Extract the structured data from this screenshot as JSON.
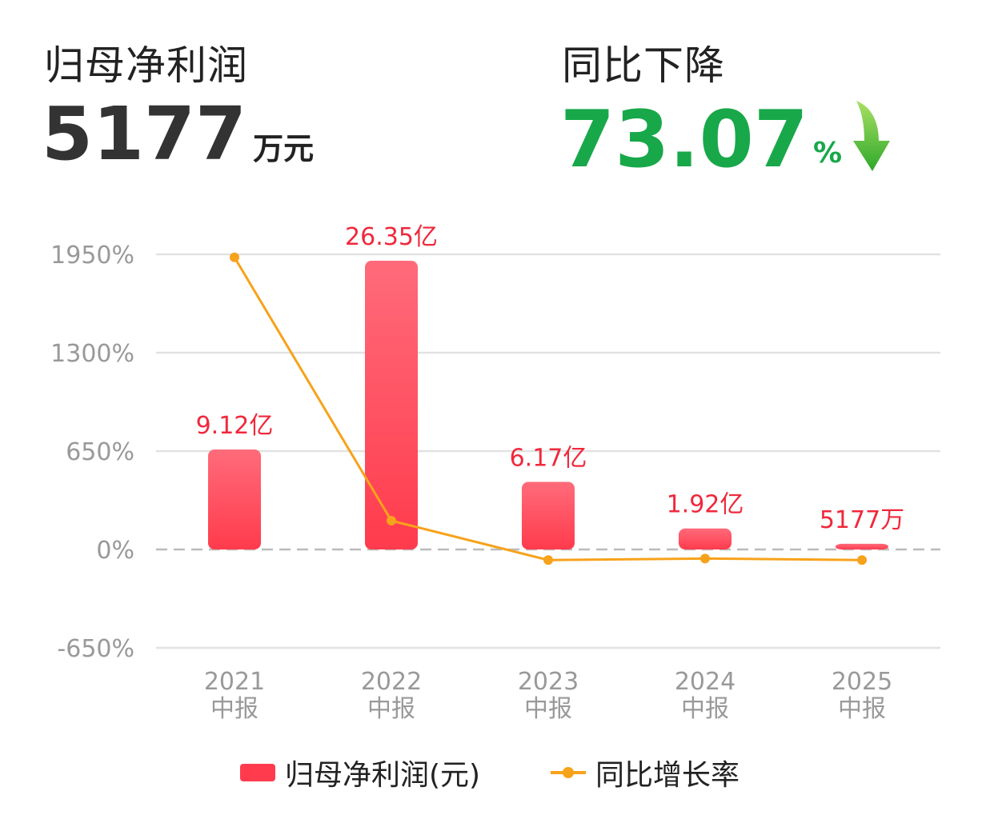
{
  "header": {
    "left_label": "归母净利润",
    "left_value": "5177",
    "left_unit": "万元",
    "right_label": "同比下降",
    "right_value": "73.07",
    "right_unit": "%",
    "right_arrow_icon": "down-arrow-icon"
  },
  "colors": {
    "bar_top": "#ff6b7a",
    "bar_bottom": "#ff3b4d",
    "line": "#f7a21b",
    "label_red": "#f0283c",
    "decline_green": "#18a84a",
    "grid": "#e2e2e2",
    "axis_text": "#999999"
  },
  "chart_data": {
    "type": "bar",
    "categories": [
      [
        "2021",
        "中报"
      ],
      [
        "2022",
        "中报"
      ],
      [
        "2023",
        "中报"
      ],
      [
        "2024",
        "中报"
      ],
      [
        "2025",
        "中报"
      ]
    ],
    "y_ticks": [
      "1950%",
      "1300%",
      "650%",
      "0%",
      "-650%"
    ],
    "y_tick_values": [
      1950,
      1300,
      650,
      0,
      -650
    ],
    "ylim": [
      -650,
      1950
    ],
    "series": [
      {
        "name": "归母净利润(元)",
        "type": "bar",
        "values": [
          912000000,
          2635000000,
          617000000,
          192000000,
          51770000
        ],
        "labels": [
          "9.12亿",
          "26.35亿",
          "6.17亿",
          "1.92亿",
          "5177万"
        ]
      },
      {
        "name": "同比增长率",
        "type": "line",
        "values": [
          1930,
          190,
          -70,
          -60,
          -70
        ]
      }
    ],
    "grid": true,
    "legend_position": "bottom"
  }
}
